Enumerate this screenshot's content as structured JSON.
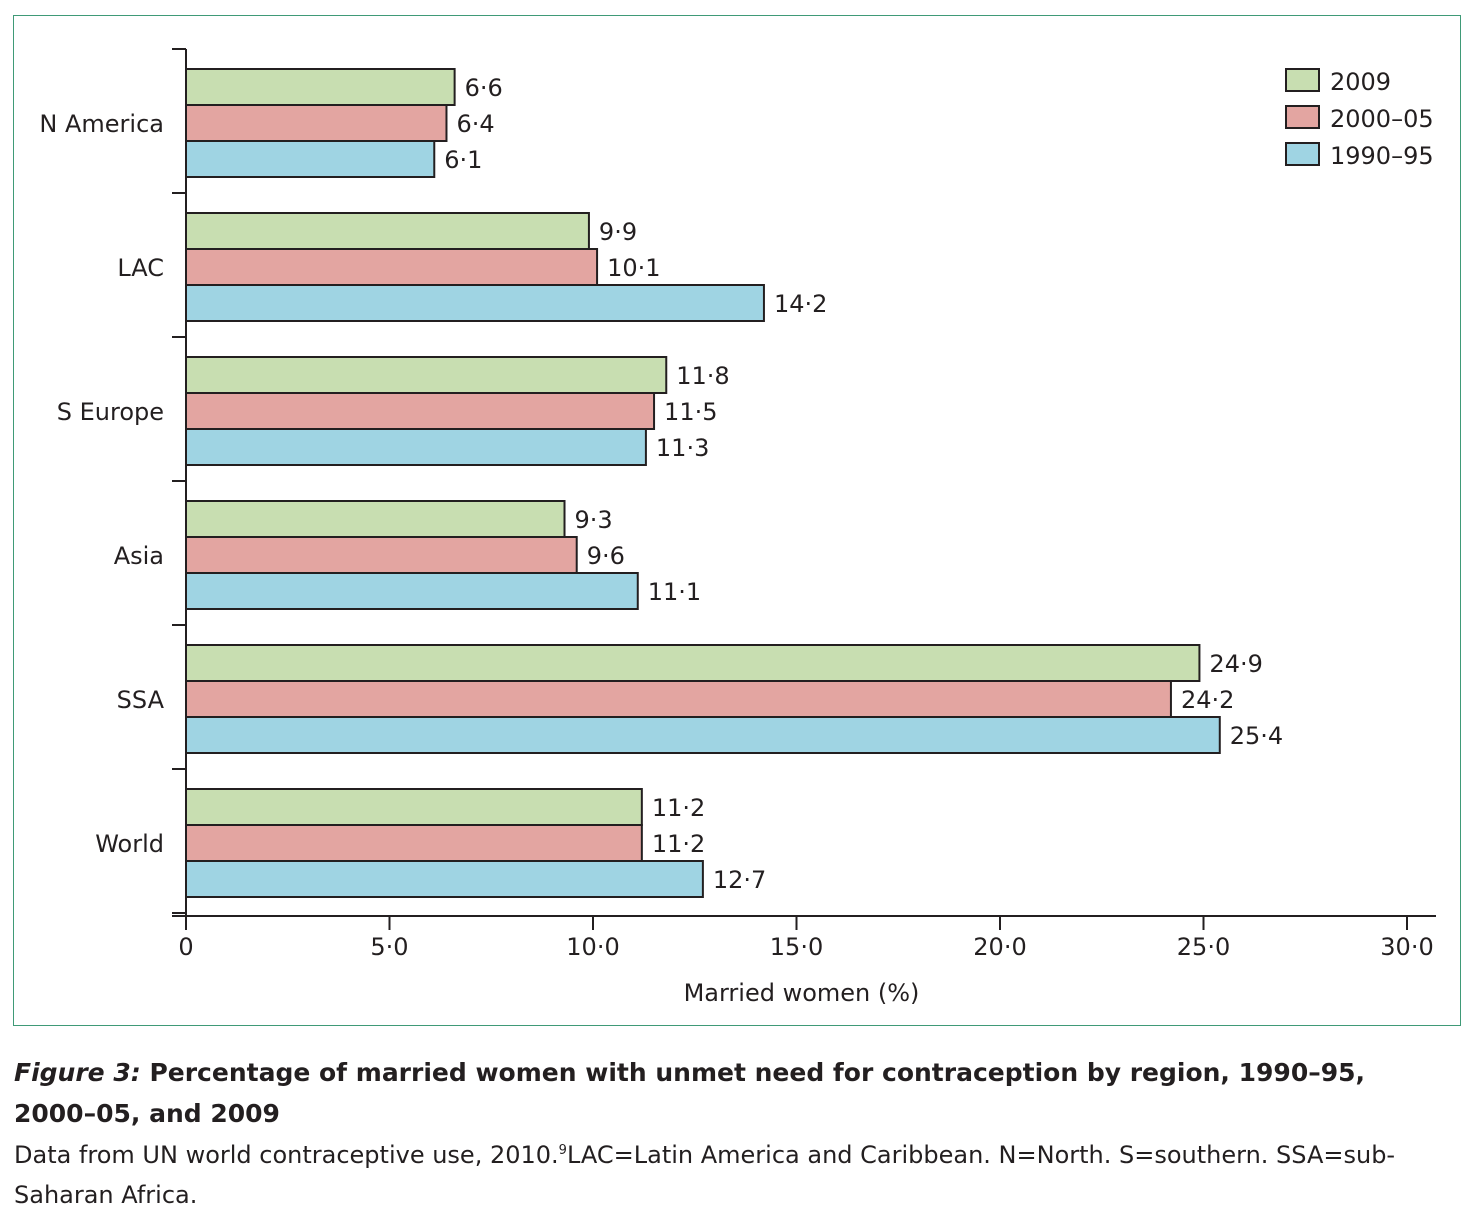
{
  "chart_data": {
    "type": "bar",
    "orientation": "horizontal",
    "categories": [
      "N America",
      "LAC",
      "S Europe",
      "Asia",
      "SSA",
      "World"
    ],
    "series": [
      {
        "name": "2009",
        "color": "#c8deb1",
        "values": [
          6.6,
          9.9,
          11.8,
          9.3,
          24.9,
          11.2
        ],
        "labels": [
          "6·6",
          "9·9",
          "11·8",
          "9·3",
          "24·9",
          "11·2"
        ]
      },
      {
        "name": "2000–05",
        "color": "#e3a5a1",
        "values": [
          6.4,
          10.1,
          11.5,
          9.6,
          24.2,
          11.2
        ],
        "labels": [
          "6·4",
          "10·1",
          "11·5",
          "9·6",
          "24·2",
          "11·2"
        ]
      },
      {
        "name": "1990–95",
        "color": "#9fd4e3",
        "values": [
          6.1,
          14.2,
          11.3,
          11.1,
          25.4,
          12.7
        ],
        "labels": [
          "6·1",
          "14·2",
          "11·3",
          "11·1",
          "25·4",
          "12·7"
        ]
      }
    ],
    "xlabel": "Married women (%)",
    "xlim": [
      0,
      30
    ],
    "xticks": [
      0,
      5,
      10,
      15,
      20,
      25,
      30
    ],
    "xtick_labels": [
      "0",
      "5·0",
      "10·0",
      "15·0",
      "20·0",
      "25·0",
      "30·0"
    ],
    "grid": false,
    "legend_position": "top-right",
    "legend_entries": [
      "2009",
      "2000–05",
      "1990–95"
    ]
  },
  "caption": {
    "figure_label": "Figure 3:",
    "title": "Percentage of married women with unmet need for contraception by region, 1990–95, 2000–05, and 2009",
    "source_before_ref": "Data from UN world contraceptive use, 2010.",
    "reference": "9",
    "source_after_ref": "LAC=Latin America and Caribbean. N=North. S=southern. SSA=sub-Saharan Africa."
  },
  "colors": {
    "frame": "#3f9a77",
    "axis": "#231f20",
    "text": "#231f20"
  }
}
